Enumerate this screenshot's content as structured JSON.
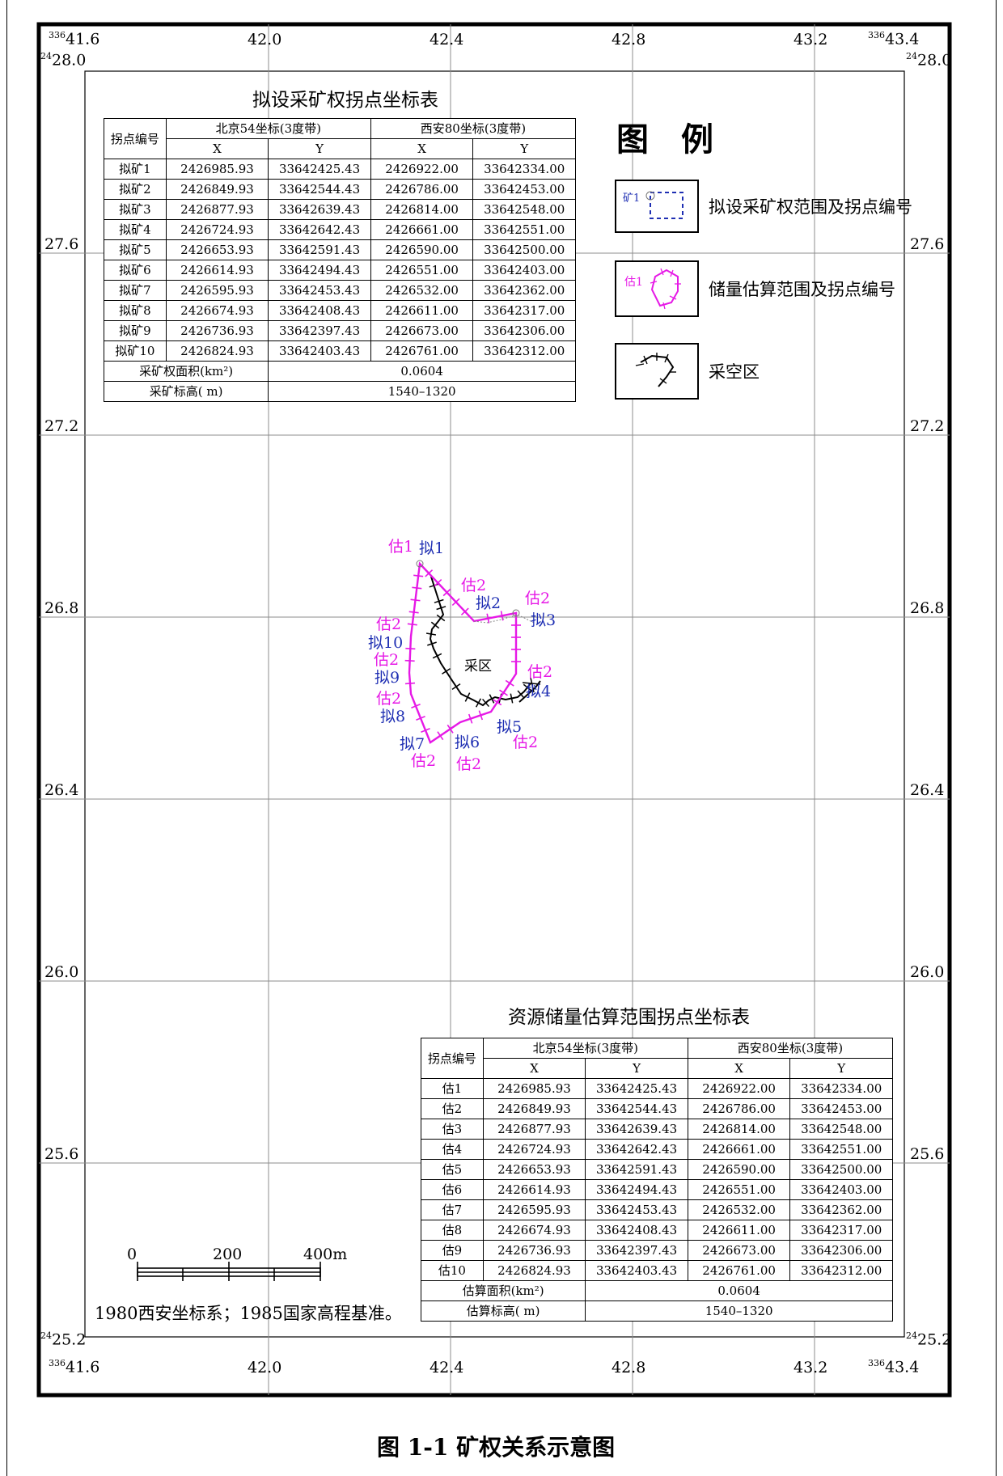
{
  "frame": {
    "corner_top_left_x": "41.6",
    "corner_top_left_x_prefix": "336",
    "corner_top_left_y": "28.0",
    "corner_top_left_y_prefix": "24",
    "corner_top_right_x": "43.4",
    "corner_top_right_x_prefix": "336",
    "corner_top_right_y": "28.0",
    "corner_top_right_y_prefix": "24",
    "corner_bottom_left_y": "25.2",
    "corner_bottom_left_y_prefix": "24",
    "corner_bottom_left_x": "41.6",
    "corner_bottom_left_x_prefix": "336",
    "corner_bottom_right_y": "25.2",
    "corner_bottom_right_y_prefix": "24",
    "corner_bottom_right_x": "43.4",
    "corner_bottom_right_x_prefix": "336",
    "x_ticks": [
      "42.0",
      "42.4",
      "42.8",
      "43.2"
    ],
    "y_ticks": [
      "27.6",
      "27.2",
      "26.8",
      "26.4",
      "26.0",
      "25.6"
    ]
  },
  "mining_table": {
    "title": "拟设采矿权拐点坐标表",
    "col_point": "拐点编号",
    "col_bj54": "北京54坐标(3度带)",
    "col_xa80": "西安80坐标(3度带)",
    "col_x": "X",
    "col_y": "Y",
    "rows": [
      [
        "拟矿1",
        "2426985.93",
        "33642425.43",
        "2426922.00",
        "33642334.00"
      ],
      [
        "拟矿2",
        "2426849.93",
        "33642544.43",
        "2426786.00",
        "33642453.00"
      ],
      [
        "拟矿3",
        "2426877.93",
        "33642639.43",
        "2426814.00",
        "33642548.00"
      ],
      [
        "拟矿4",
        "2426724.93",
        "33642642.43",
        "2426661.00",
        "33642551.00"
      ],
      [
        "拟矿5",
        "2426653.93",
        "33642591.43",
        "2426590.00",
        "33642500.00"
      ],
      [
        "拟矿6",
        "2426614.93",
        "33642494.43",
        "2426551.00",
        "33642403.00"
      ],
      [
        "拟矿7",
        "2426595.93",
        "33642453.43",
        "2426532.00",
        "33642362.00"
      ],
      [
        "拟矿8",
        "2426674.93",
        "33642408.43",
        "2426611.00",
        "33642317.00"
      ],
      [
        "拟矿9",
        "2426736.93",
        "33642397.43",
        "2426673.00",
        "33642306.00"
      ],
      [
        "拟矿10",
        "2426824.93",
        "33642403.43",
        "2426761.00",
        "33642312.00"
      ]
    ],
    "area_label": "采矿权面积(km²)",
    "area_value": "0.0604",
    "elev_label": "采矿标高( m)",
    "elev_value": "1540–1320"
  },
  "legend": {
    "title": "图　例",
    "item1_sample": "矿1",
    "item1_label": "拟设采矿权范围及拐点编号",
    "item2_sample": "估1",
    "item2_label": "储量估算范围及拐点编号",
    "item3_label": "采空区"
  },
  "map": {
    "goaf_label": "采区",
    "labels": {
      "gu1": "估1",
      "ni1": "拟1",
      "gu2a": "估2",
      "ni2": "拟2",
      "gu2b": "估2",
      "ni3": "拟3",
      "gu2c": "估2",
      "ni4": "拟4",
      "ni5": "拟5",
      "gu2d": "估2",
      "ni6": "拟6",
      "gu2e": "估2",
      "ni7": "拟7",
      "gu2f": "估2",
      "gu2g": "估2",
      "ni8": "拟8",
      "gu2h": "估2",
      "ni9": "拟9",
      "gu2i": "估2",
      "ni10": "拟10"
    }
  },
  "reserve_table": {
    "title": "资源储量估算范围拐点坐标表",
    "col_point": "拐点编号",
    "col_bj54": "北京54坐标(3度带)",
    "col_xa80": "西安80坐标(3度带)",
    "col_x": "X",
    "col_y": "Y",
    "rows": [
      [
        "估1",
        "2426985.93",
        "33642425.43",
        "2426922.00",
        "33642334.00"
      ],
      [
        "估2",
        "2426849.93",
        "33642544.43",
        "2426786.00",
        "33642453.00"
      ],
      [
        "估3",
        "2426877.93",
        "33642639.43",
        "2426814.00",
        "33642548.00"
      ],
      [
        "估4",
        "2426724.93",
        "33642642.43",
        "2426661.00",
        "33642551.00"
      ],
      [
        "估5",
        "2426653.93",
        "33642591.43",
        "2426590.00",
        "33642500.00"
      ],
      [
        "估6",
        "2426614.93",
        "33642494.43",
        "2426551.00",
        "33642403.00"
      ],
      [
        "估7",
        "2426595.93",
        "33642453.43",
        "2426532.00",
        "33642362.00"
      ],
      [
        "估8",
        "2426674.93",
        "33642408.43",
        "2426611.00",
        "33642317.00"
      ],
      [
        "估9",
        "2426736.93",
        "33642397.43",
        "2426673.00",
        "33642306.00"
      ],
      [
        "估10",
        "2426824.93",
        "33642403.43",
        "2426761.00",
        "33642312.00"
      ]
    ],
    "area_label": "估算面积(km²)",
    "area_value": "0.0604",
    "elev_label": "估算标高( m)",
    "elev_value": "1540–1320"
  },
  "scale_bar": {
    "label_0": "0",
    "label_200": "200",
    "label_400": "400m"
  },
  "datum_note": "1980西安坐标系；1985国家高程基准。",
  "caption": "图 1-1 矿权关系示意图",
  "colors": {
    "frame": "#000000",
    "grid": "#8c8c8c",
    "mining_boundary": "#e619e6",
    "mining_label": "#e619e6",
    "point_label": "#1f2fb3",
    "goaf": "#000000",
    "dashed_blue": "#1f2fb3"
  }
}
